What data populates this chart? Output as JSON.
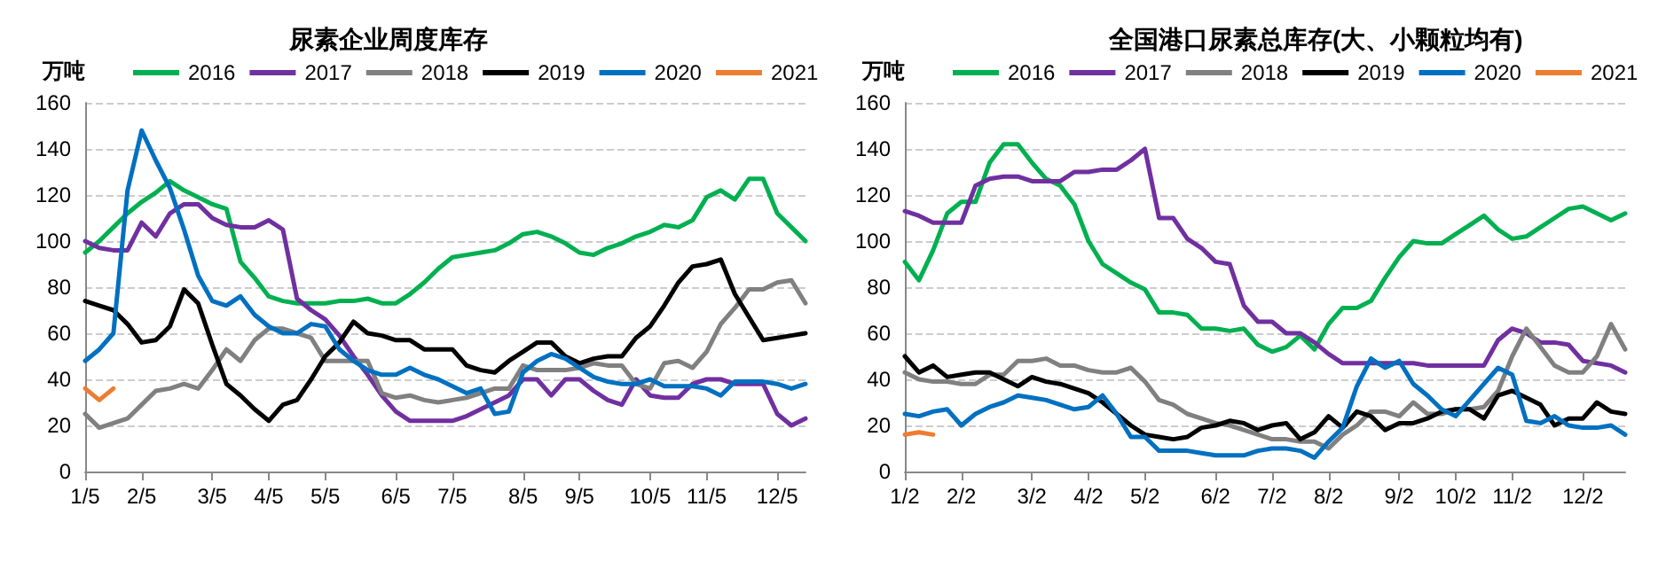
{
  "chart_data": [
    {
      "type": "line",
      "title": "尿素企业周度库存",
      "ylabel": "万吨",
      "legend": "top",
      "grid": "y",
      "marker": "none",
      "line_style": "solid",
      "ylim": [
        0,
        160
      ],
      "yticks": [
        0,
        20,
        40,
        60,
        80,
        100,
        120,
        140,
        160
      ],
      "categories": [
        "1/5",
        null,
        null,
        null,
        "2/5",
        null,
        null,
        null,
        null,
        "3/5",
        null,
        null,
        null,
        "4/5",
        null,
        null,
        null,
        "5/5",
        null,
        null,
        null,
        null,
        "6/5",
        null,
        null,
        null,
        "7/5",
        null,
        null,
        null,
        null,
        "8/5",
        null,
        null,
        null,
        "9/5",
        null,
        null,
        null,
        null,
        "10/5",
        null,
        null,
        null,
        "11/5",
        null,
        null,
        null,
        null,
        "12/5",
        null,
        null
      ],
      "series": [
        {
          "name": "2016",
          "color": "#00b050",
          "values": [
            95,
            100,
            106,
            112,
            117,
            121,
            126,
            122,
            119,
            116,
            114,
            91,
            84,
            76,
            74,
            73,
            73,
            73,
            74,
            74,
            75,
            73,
            73,
            77,
            82,
            88,
            93,
            94,
            95,
            96,
            99,
            103,
            104,
            102,
            99,
            95,
            94,
            97,
            99,
            102,
            104,
            107,
            106,
            109,
            119,
            122,
            118,
            127,
            127,
            112,
            106,
            100
          ]
        },
        {
          "name": "2017",
          "color": "#7030a0",
          "values": [
            100,
            97,
            96,
            96,
            108,
            102,
            112,
            116,
            116,
            110,
            107,
            106,
            106,
            109,
            105,
            75,
            70,
            66,
            59,
            50,
            42,
            33,
            26,
            22,
            22,
            22,
            22,
            24,
            27,
            30,
            33,
            40,
            40,
            33,
            40,
            40,
            35,
            31,
            29,
            40,
            33,
            32,
            32,
            38,
            40,
            40,
            38,
            38,
            38,
            25,
            20,
            23
          ]
        },
        {
          "name": "2018",
          "color": "#808080",
          "values": [
            25,
            19,
            21,
            23,
            29,
            35,
            36,
            38,
            36,
            44,
            53,
            48,
            57,
            62,
            62,
            60,
            58,
            48,
            48,
            48,
            48,
            34,
            32,
            33,
            31,
            30,
            31,
            32,
            34,
            36,
            36,
            46,
            44,
            44,
            44,
            45,
            47,
            46,
            46,
            38,
            36,
            47,
            48,
            45,
            52,
            64,
            71,
            79,
            79,
            82,
            83,
            73
          ]
        },
        {
          "name": "2019",
          "color": "#000000",
          "values": [
            74,
            72,
            70,
            64,
            56,
            57,
            63,
            79,
            73,
            55,
            38,
            33,
            27,
            22,
            29,
            31,
            40,
            50,
            56,
            65,
            60,
            59,
            57,
            57,
            53,
            53,
            53,
            46,
            44,
            43,
            48,
            52,
            56,
            56,
            50,
            47,
            49,
            50,
            50,
            58,
            63,
            72,
            82,
            89,
            90,
            92,
            77,
            67,
            57,
            58,
            59,
            60
          ]
        },
        {
          "name": "2020",
          "color": "#0070c0",
          "values": [
            48,
            53,
            60,
            122,
            148,
            135,
            123,
            105,
            85,
            74,
            72,
            76,
            68,
            63,
            60,
            60,
            64,
            63,
            53,
            48,
            44,
            42,
            42,
            45,
            42,
            40,
            37,
            34,
            36,
            25,
            26,
            43,
            48,
            51,
            49,
            45,
            41,
            39,
            38,
            38,
            40,
            37,
            37,
            37,
            36,
            33,
            39,
            39,
            39,
            38,
            36,
            38
          ]
        },
        {
          "name": "2021",
          "color": "#ed7d31",
          "values": [
            36,
            31,
            36,
            null,
            null,
            null,
            null,
            null,
            null,
            null,
            null,
            null,
            null,
            null,
            null,
            null,
            null,
            null,
            null,
            null,
            null,
            null,
            null,
            null,
            null,
            null,
            null,
            null,
            null,
            null,
            null,
            null,
            null,
            null,
            null,
            null,
            null,
            null,
            null,
            null,
            null,
            null,
            null,
            null,
            null,
            null,
            null,
            null,
            null,
            null,
            null,
            null
          ]
        }
      ]
    },
    {
      "type": "line",
      "title": "全国港口尿素总库存(大、小颗粒均有)",
      "ylabel": "万吨",
      "legend": "top",
      "grid": "y",
      "marker": "none",
      "line_style": "solid",
      "ylim": [
        0,
        160
      ],
      "yticks": [
        0,
        20,
        40,
        60,
        80,
        100,
        120,
        140,
        160
      ],
      "categories": [
        "1/2",
        null,
        null,
        null,
        "2/2",
        null,
        null,
        null,
        null,
        "3/2",
        null,
        null,
        null,
        "4/2",
        null,
        null,
        null,
        "5/2",
        null,
        null,
        null,
        null,
        "6/2",
        null,
        null,
        null,
        "7/2",
        null,
        null,
        null,
        "8/2",
        null,
        null,
        null,
        null,
        "9/2",
        null,
        null,
        null,
        "10/2",
        null,
        null,
        null,
        "11/2",
        null,
        null,
        null,
        null,
        "12/2",
        null,
        null,
        null
      ],
      "series": [
        {
          "name": "2016",
          "color": "#00b050",
          "values": [
            91,
            83,
            96,
            112,
            117,
            117,
            134,
            142,
            142,
            134,
            127,
            124,
            116,
            100,
            90,
            86,
            82,
            79,
            69,
            69,
            68,
            62,
            62,
            61,
            62,
            55,
            52,
            54,
            59,
            53,
            64,
            71,
            71,
            74,
            84,
            93,
            100,
            99,
            99,
            103,
            107,
            111,
            105,
            101,
            102,
            106,
            110,
            114,
            115,
            112,
            109,
            112
          ]
        },
        {
          "name": "2017",
          "color": "#7030a0",
          "values": [
            113,
            111,
            108,
            108,
            108,
            124,
            127,
            128,
            128,
            126,
            126,
            126,
            130,
            130,
            131,
            131,
            135,
            140,
            110,
            110,
            101,
            97,
            91,
            90,
            72,
            65,
            65,
            60,
            60,
            56,
            51,
            47,
            47,
            47,
            47,
            47,
            47,
            46,
            46,
            46,
            46,
            46,
            57,
            62,
            60,
            56,
            56,
            55,
            48,
            47,
            46,
            43
          ]
        },
        {
          "name": "2018",
          "color": "#808080",
          "values": [
            43,
            40,
            39,
            39,
            38,
            38,
            42,
            42,
            48,
            48,
            49,
            46,
            46,
            44,
            43,
            43,
            45,
            39,
            31,
            29,
            25,
            23,
            21,
            20,
            18,
            16,
            14,
            14,
            13,
            13,
            10,
            16,
            20,
            26,
            26,
            24,
            30,
            25,
            25,
            27,
            27,
            28,
            35,
            50,
            62,
            54,
            46,
            43,
            43,
            50,
            64,
            53
          ]
        },
        {
          "name": "2019",
          "color": "#000000",
          "values": [
            50,
            43,
            46,
            41,
            42,
            43,
            43,
            40,
            37,
            41,
            39,
            38,
            36,
            34,
            30,
            25,
            20,
            16,
            15,
            14,
            15,
            19,
            20,
            22,
            21,
            18,
            20,
            21,
            14,
            17,
            24,
            19,
            26,
            24,
            18,
            21,
            21,
            23,
            26,
            27,
            27,
            23,
            33,
            35,
            32,
            29,
            20,
            23,
            23,
            30,
            26,
            25
          ]
        },
        {
          "name": "2020",
          "color": "#0070c0",
          "values": [
            25,
            24,
            26,
            27,
            20,
            25,
            28,
            30,
            33,
            32,
            31,
            29,
            27,
            28,
            33,
            25,
            15,
            15,
            9,
            9,
            9,
            8,
            7,
            7,
            7,
            9,
            10,
            10,
            9,
            6,
            13,
            19,
            37,
            49,
            45,
            48,
            38,
            33,
            27,
            24,
            31,
            38,
            45,
            42,
            22,
            21,
            24,
            20,
            19,
            19,
            20,
            16
          ]
        },
        {
          "name": "2021",
          "color": "#ed7d31",
          "values": [
            16,
            17,
            16,
            null,
            null,
            null,
            null,
            null,
            null,
            null,
            null,
            null,
            null,
            null,
            null,
            null,
            null,
            null,
            null,
            null,
            null,
            null,
            null,
            null,
            null,
            null,
            null,
            null,
            null,
            null,
            null,
            null,
            null,
            null,
            null,
            null,
            null,
            null,
            null,
            null,
            null,
            null,
            null,
            null,
            null,
            null,
            null,
            null,
            null,
            null,
            null,
            null
          ]
        }
      ]
    }
  ]
}
